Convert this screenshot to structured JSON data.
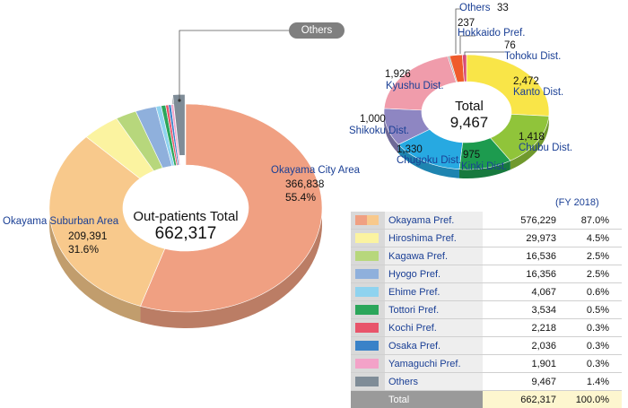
{
  "chart_data": [
    {
      "type": "pie",
      "title": "",
      "center_label": "Out-patients Total",
      "center_value": "662,317",
      "slices": [
        {
          "name": "Okayama City Area",
          "value": 366838,
          "value_text": "366,838",
          "pct_text": "55.4%",
          "color": "#f0a082"
        },
        {
          "name": "Okayama Suburban Area",
          "value": 209391,
          "value_text": "209,391",
          "pct_text": "31.6%",
          "color": "#f8c98c"
        },
        {
          "name": "Hiroshima Pref.",
          "value": 29973,
          "color": "#fbf3a0"
        },
        {
          "name": "Kagawa Pref.",
          "value": 16536,
          "color": "#b7d77c"
        },
        {
          "name": "Hyogo Pref.",
          "value": 16356,
          "color": "#8fb0dc"
        },
        {
          "name": "Ehime Pref.",
          "value": 4067,
          "color": "#8fd3ef"
        },
        {
          "name": "Tottori Pref.",
          "value": 3534,
          "color": "#2ba65a"
        },
        {
          "name": "Kochi Pref.",
          "value": 2218,
          "color": "#e8546a"
        },
        {
          "name": "Osaka Pref.",
          "value": 2036,
          "color": "#3a82c8"
        },
        {
          "name": "Yamaguchi Pref.",
          "value": 1901,
          "color": "#f3a2c8"
        },
        {
          "name": "Others",
          "value": 9467,
          "color": "#7f8c97",
          "exploded": true
        }
      ],
      "callout_label": "Others"
    },
    {
      "type": "pie",
      "title": "",
      "center_label": "Total",
      "center_value": "9,467",
      "slices": [
        {
          "name": "Kanto Dist.",
          "value": 2472,
          "value_text": "2,472",
          "color": "#f9e548"
        },
        {
          "name": "Chubu Dist.",
          "value": 1418,
          "value_text": "1,418",
          "color": "#90c43a"
        },
        {
          "name": "Kinki Dist.",
          "value": 975,
          "value_text": "975",
          "color": "#1d9b4f"
        },
        {
          "name": "Chugoku Dist.",
          "value": 1330,
          "value_text": "1,330",
          "color": "#27a9e1"
        },
        {
          "name": "Shikoku Dist.",
          "value": 1000,
          "value_text": "1,000",
          "color": "#8e86c2"
        },
        {
          "name": "Kyushu Dist.",
          "value": 1926,
          "value_text": "1,926",
          "color": "#f09cab"
        },
        {
          "name": "Others",
          "value": 33,
          "value_text": "33",
          "color": "#aaaaaa"
        },
        {
          "name": "Hokkaido Pref.",
          "value": 237,
          "value_text": "237",
          "color": "#ef5b2c"
        },
        {
          "name": "Tohoku Dist.",
          "value": 76,
          "value_text": "76",
          "color": "#d84a78"
        }
      ]
    },
    {
      "type": "table",
      "caption": "(FY 2018)",
      "rows": [
        {
          "name": "Okayama Pref.",
          "value": "576,229",
          "pct": "87.0%",
          "colors": [
            "#f0a082",
            "#f8c98c"
          ]
        },
        {
          "name": "Hiroshima Pref.",
          "value": "29,973",
          "pct": "4.5%",
          "colors": [
            "#fbf3a0"
          ]
        },
        {
          "name": "Kagawa Pref.",
          "value": "16,536",
          "pct": "2.5%",
          "colors": [
            "#b7d77c"
          ]
        },
        {
          "name": "Hyogo Pref.",
          "value": "16,356",
          "pct": "2.5%",
          "colors": [
            "#8fb0dc"
          ]
        },
        {
          "name": "Ehime Pref.",
          "value": "4,067",
          "pct": "0.6%",
          "colors": [
            "#8fd3ef"
          ]
        },
        {
          "name": "Tottori Pref.",
          "value": "3,534",
          "pct": "0.5%",
          "colors": [
            "#2ba65a"
          ]
        },
        {
          "name": "Kochi Pref.",
          "value": "2,218",
          "pct": "0.3%",
          "colors": [
            "#e8546a"
          ]
        },
        {
          "name": "Osaka Pref.",
          "value": "2,036",
          "pct": "0.3%",
          "colors": [
            "#3a82c8"
          ]
        },
        {
          "name": "Yamaguchi Pref.",
          "value": "1,901",
          "pct": "0.3%",
          "colors": [
            "#f3a2c8"
          ]
        },
        {
          "name": "Others",
          "value": "9,467",
          "pct": "1.4%",
          "colors": [
            "#7f8c97"
          ]
        }
      ],
      "total": {
        "name": "Total",
        "value": "662,317",
        "pct": "100.0%"
      }
    }
  ]
}
